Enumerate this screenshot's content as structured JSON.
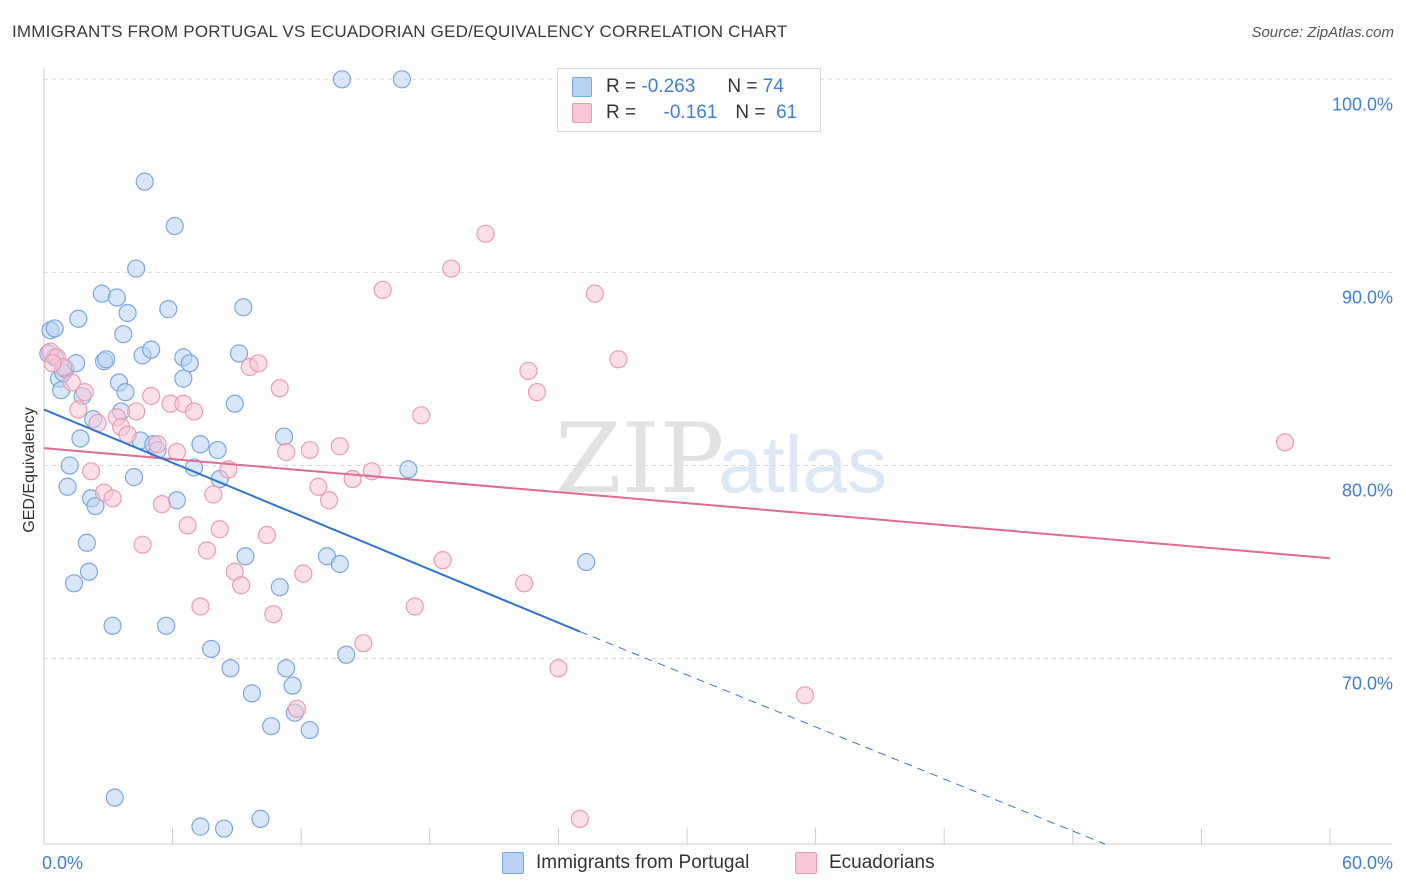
{
  "title": "IMMIGRANTS FROM PORTUGAL VS ECUADORIAN GED/EQUIVALENCY CORRELATION CHART",
  "source": "Source: ZipAtlas.com",
  "watermark": {
    "zip": "ZIP",
    "atlas": "atlas"
  },
  "legend": {
    "row1": {
      "r_label": "R =",
      "r_value": "-0.263",
      "n_label": "N =",
      "n_value": "74"
    },
    "row2": {
      "r_label": "R =",
      "r_value": "-0.161",
      "n_label": "N =",
      "n_value": "61"
    }
  },
  "colors": {
    "blue_fill": "#b9d1f2",
    "blue_stroke": "#7ba7e0",
    "blue_line": "#2f74d0",
    "pink_fill": "#f7c7d6",
    "pink_stroke": "#ee9ab4",
    "pink_line": "#e06a92",
    "axis_text": "#3f7fd8",
    "grid": "#d9d9d9"
  },
  "chart_data": {
    "type": "scatter",
    "xlabel": "",
    "ylabel": "GED/Equivalency",
    "xlim": [
      0,
      60
    ],
    "ylim": [
      60.4,
      101.0
    ],
    "x_tick_labels": [
      "0.0%",
      "60.0%"
    ],
    "y_ticks": [
      70,
      80,
      90,
      100
    ],
    "y_tick_labels": [
      "70.0%",
      "80.0%",
      "90.0%",
      "100.0%"
    ],
    "grid": true,
    "legend_position": "top-center",
    "series": [
      {
        "name": "Immigrants from Portugal",
        "color": "#7ba7e0",
        "points": [
          [
            0.3,
            87.0
          ],
          [
            0.5,
            85.6
          ],
          [
            0.5,
            87.1
          ],
          [
            0.7,
            84.5
          ],
          [
            0.8,
            83.9
          ],
          [
            0.9,
            84.8
          ],
          [
            1.0,
            85.0
          ],
          [
            1.1,
            78.9
          ],
          [
            1.2,
            80.0
          ],
          [
            1.4,
            73.9
          ],
          [
            1.5,
            85.3
          ],
          [
            1.6,
            87.6
          ],
          [
            1.7,
            81.4
          ],
          [
            1.8,
            83.6
          ],
          [
            2.0,
            76.0
          ],
          [
            2.1,
            74.5
          ],
          [
            2.2,
            78.3
          ],
          [
            2.3,
            82.4
          ],
          [
            2.4,
            77.9
          ],
          [
            2.7,
            88.9
          ],
          [
            2.8,
            85.4
          ],
          [
            2.9,
            85.5
          ],
          [
            3.2,
            71.7
          ],
          [
            3.3,
            62.8
          ],
          [
            3.4,
            88.7
          ],
          [
            3.5,
            84.3
          ],
          [
            3.6,
            82.8
          ],
          [
            3.7,
            86.8
          ],
          [
            3.8,
            83.8
          ],
          [
            3.9,
            87.9
          ],
          [
            4.2,
            79.4
          ],
          [
            4.3,
            90.2
          ],
          [
            4.5,
            81.3
          ],
          [
            4.6,
            85.7
          ],
          [
            4.7,
            94.7
          ],
          [
            5.0,
            86.0
          ],
          [
            5.1,
            81.1
          ],
          [
            5.3,
            80.8
          ],
          [
            5.7,
            71.7
          ],
          [
            5.8,
            88.1
          ],
          [
            6.1,
            92.4
          ],
          [
            6.2,
            78.2
          ],
          [
            6.5,
            84.5
          ],
          [
            6.5,
            85.6
          ],
          [
            6.8,
            85.3
          ],
          [
            7.0,
            79.9
          ],
          [
            7.3,
            81.1
          ],
          [
            7.3,
            61.3
          ],
          [
            7.8,
            70.5
          ],
          [
            8.1,
            80.8
          ],
          [
            8.2,
            79.3
          ],
          [
            8.4,
            61.2
          ],
          [
            8.7,
            69.5
          ],
          [
            8.9,
            83.2
          ],
          [
            9.1,
            85.8
          ],
          [
            9.3,
            88.2
          ],
          [
            9.4,
            75.3
          ],
          [
            9.7,
            68.2
          ],
          [
            10.1,
            61.7
          ],
          [
            10.6,
            66.5
          ],
          [
            11.0,
            73.7
          ],
          [
            11.2,
            81.5
          ],
          [
            11.3,
            69.5
          ],
          [
            11.6,
            68.6
          ],
          [
            11.7,
            67.2
          ],
          [
            12.4,
            66.3
          ],
          [
            13.2,
            75.3
          ],
          [
            13.8,
            74.9
          ],
          [
            13.9,
            100.0
          ],
          [
            14.1,
            70.2
          ],
          [
            16.7,
            100.0
          ],
          [
            17.0,
            79.8
          ],
          [
            25.3,
            75.0
          ],
          [
            0.2,
            85.8
          ]
        ]
      },
      {
        "name": "Ecuadorians",
        "color": "#ee9ab4",
        "points": [
          [
            0.3,
            85.9
          ],
          [
            0.6,
            85.6
          ],
          [
            0.9,
            85.1
          ],
          [
            1.3,
            84.3
          ],
          [
            1.6,
            82.9
          ],
          [
            1.9,
            83.8
          ],
          [
            2.2,
            79.7
          ],
          [
            2.5,
            82.2
          ],
          [
            2.8,
            78.6
          ],
          [
            3.2,
            78.3
          ],
          [
            3.4,
            82.5
          ],
          [
            3.6,
            82.0
          ],
          [
            3.9,
            81.6
          ],
          [
            4.3,
            82.8
          ],
          [
            4.6,
            75.9
          ],
          [
            5.0,
            83.6
          ],
          [
            5.3,
            81.1
          ],
          [
            5.5,
            78.0
          ],
          [
            5.9,
            83.2
          ],
          [
            6.2,
            80.7
          ],
          [
            6.5,
            83.2
          ],
          [
            6.7,
            76.9
          ],
          [
            7.0,
            82.8
          ],
          [
            7.3,
            72.7
          ],
          [
            7.6,
            75.6
          ],
          [
            7.9,
            78.5
          ],
          [
            8.2,
            76.7
          ],
          [
            8.6,
            79.8
          ],
          [
            8.9,
            74.5
          ],
          [
            9.2,
            73.8
          ],
          [
            9.6,
            85.1
          ],
          [
            10.0,
            85.3
          ],
          [
            10.4,
            76.4
          ],
          [
            10.7,
            72.3
          ],
          [
            11.0,
            84.0
          ],
          [
            11.3,
            80.7
          ],
          [
            11.8,
            67.4
          ],
          [
            12.1,
            74.4
          ],
          [
            12.4,
            80.8
          ],
          [
            12.8,
            78.9
          ],
          [
            13.3,
            78.2
          ],
          [
            13.8,
            81.0
          ],
          [
            14.4,
            79.3
          ],
          [
            14.9,
            70.8
          ],
          [
            15.3,
            79.7
          ],
          [
            15.8,
            89.1
          ],
          [
            17.3,
            72.7
          ],
          [
            17.6,
            82.6
          ],
          [
            18.6,
            75.1
          ],
          [
            19.0,
            90.2
          ],
          [
            20.6,
            92.0
          ],
          [
            22.4,
            73.9
          ],
          [
            22.6,
            84.9
          ],
          [
            23.0,
            83.8
          ],
          [
            24.0,
            69.5
          ],
          [
            25.0,
            61.7
          ],
          [
            25.7,
            88.9
          ],
          [
            26.8,
            85.5
          ],
          [
            35.5,
            68.1
          ],
          [
            57.9,
            81.2
          ],
          [
            0.4,
            85.3
          ]
        ]
      }
    ],
    "trend_lines": [
      {
        "series": "Immigrants from Portugal",
        "solid": [
          [
            0,
            82.9
          ],
          [
            25,
            71.4
          ]
        ],
        "dashed": [
          [
            25,
            71.4
          ],
          [
            49.5,
            60.4
          ]
        ]
      },
      {
        "series": "Ecuadorians",
        "solid": [
          [
            0,
            80.9
          ],
          [
            60,
            75.2
          ]
        ]
      }
    ]
  }
}
